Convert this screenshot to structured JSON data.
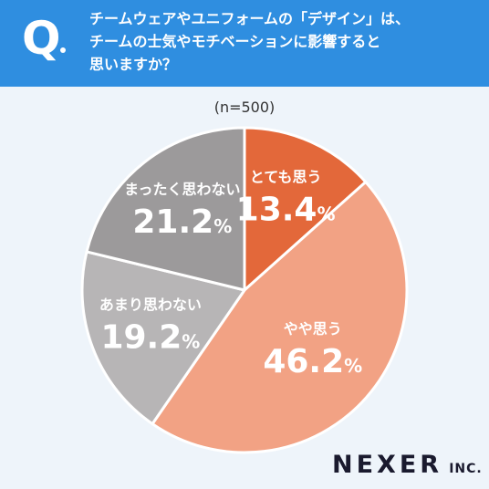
{
  "question": {
    "mark": "Q",
    "lines": [
      "チームウェアやユニフォームの「デザイン」は、",
      "チームの士気やモチベーションに影響すると",
      "思いますか？"
    ]
  },
  "sample_label": "(n=500)",
  "brand": {
    "name": "NEXER",
    "suffix": "INC."
  },
  "colors": {
    "header": "#2f8ee0",
    "background": "#eef4fa",
    "slices": [
      "#e3683a",
      "#f2a284",
      "#b7b5b6",
      "#9c9a9b"
    ]
  },
  "chart_data": {
    "type": "pie",
    "title": "",
    "slices": [
      {
        "label": "とても思う",
        "value": 13.4,
        "display": "13.4",
        "unit": "%"
      },
      {
        "label": "やや思う",
        "value": 46.2,
        "display": "46.2",
        "unit": "%"
      },
      {
        "label": "あまり思わない",
        "value": 19.2,
        "display": "19.2",
        "unit": "%"
      },
      {
        "label": "まったく思わない",
        "value": 21.2,
        "display": "21.2",
        "unit": "%"
      }
    ],
    "start": "12 o'clock",
    "direction": "clockwise"
  }
}
